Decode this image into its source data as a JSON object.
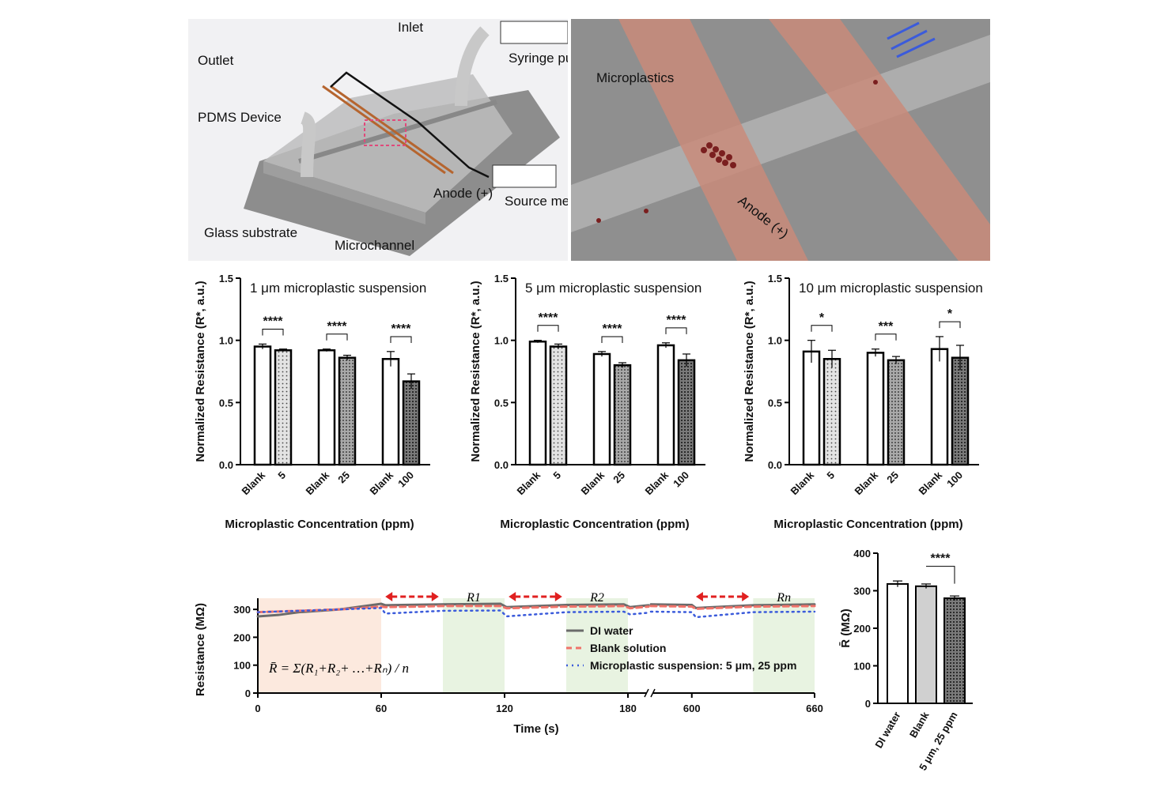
{
  "schematic": {
    "labels": {
      "inlet": "Inlet",
      "syringe": "Syringe pump",
      "outlet": "Outlet",
      "pdms": "PDMS Device",
      "glass": "Glass substrate",
      "microchannel": "Microchannel",
      "anode": "Anode (+)",
      "source": "Source meter"
    }
  },
  "render": {
    "labels": {
      "microplastics": "Microplastics",
      "anode": "Anode (+)"
    }
  },
  "chart_data": [
    {
      "type": "bar",
      "title": "1 μm microplastic suspension",
      "xlabel": "Microplastic Concentration (ppm)",
      "ylabel": "Normalized Resistance (R*, a.u.)",
      "ylim": [
        0,
        1.5
      ],
      "yticks": [
        "0.0",
        "0.5",
        "1.0",
        "1.5"
      ],
      "categories": [
        "Blank",
        "5",
        "Blank",
        "25",
        "Blank",
        "100"
      ],
      "values": [
        0.95,
        0.92,
        0.92,
        0.86,
        0.85,
        0.67
      ],
      "errors": [
        0.02,
        0.01,
        0.01,
        0.02,
        0.06,
        0.06
      ],
      "significance": [
        "****",
        "****",
        "****"
      ]
    },
    {
      "type": "bar",
      "title": "5 μm microplastic suspension",
      "xlabel": "Microplastic Concentration (ppm)",
      "ylabel": "Normalized Resistance (R*, a.u.)",
      "ylim": [
        0,
        1.5
      ],
      "yticks": [
        "0.0",
        "0.5",
        "1.0",
        "1.5"
      ],
      "categories": [
        "Blank",
        "5",
        "Blank",
        "25",
        "Blank",
        "100"
      ],
      "values": [
        0.99,
        0.95,
        0.89,
        0.8,
        0.96,
        0.84
      ],
      "errors": [
        0.01,
        0.02,
        0.02,
        0.02,
        0.02,
        0.05
      ],
      "significance": [
        "****",
        "****",
        "****"
      ]
    },
    {
      "type": "bar",
      "title": "10 μm microplastic suspension",
      "xlabel": "Microplastic Concentration (ppm)",
      "ylabel": "Normalized Resistance (R*, a.u.)",
      "ylim": [
        0,
        1.5
      ],
      "yticks": [
        "0.0",
        "0.5",
        "1.0",
        "1.5"
      ],
      "categories": [
        "Blank",
        "5",
        "Blank",
        "25",
        "Blank",
        "100"
      ],
      "values": [
        0.91,
        0.85,
        0.9,
        0.84,
        0.93,
        0.86
      ],
      "errors": [
        0.09,
        0.07,
        0.03,
        0.03,
        0.1,
        0.1
      ],
      "significance": [
        "*",
        "***",
        "*"
      ]
    },
    {
      "type": "line",
      "xlabel": "Time (s)",
      "ylabel": "Resistance (MΩ)",
      "yticks": [
        "0",
        "100",
        "200",
        "300"
      ],
      "ylim": [
        0,
        340
      ],
      "xticks_left": [
        "0",
        "60",
        "120",
        "180"
      ],
      "xticks_right": [
        "600",
        "660"
      ],
      "region_labels": [
        "R1",
        "R2",
        "Rn"
      ],
      "formula": "R̄ = Σ(R₁+R₂+ …+Rₙ) / n",
      "legend": [
        "DI water",
        "Blank solution",
        "Microplastic suspension: 5 μm, 25 ppm"
      ],
      "series": [
        {
          "name": "DI water",
          "color": "#6b6b6b",
          "x": [
            0,
            10,
            20,
            40,
            60,
            62,
            90,
            118,
            121,
            150,
            178,
            181,
            190,
            580,
            600,
            602,
            630,
            660
          ],
          "y": [
            275,
            280,
            290,
            300,
            320,
            315,
            318,
            320,
            308,
            316,
            318,
            308,
            315,
            318,
            316,
            305,
            315,
            318
          ]
        },
        {
          "name": "Blank solution",
          "color": "#f0736a",
          "x": [
            0,
            20,
            40,
            60,
            62,
            90,
            118,
            121,
            150,
            178,
            181,
            190,
            580,
            600,
            602,
            630,
            660
          ],
          "y": [
            290,
            295,
            300,
            310,
            308,
            312,
            312,
            304,
            310,
            312,
            304,
            310,
            312,
            310,
            302,
            310,
            312
          ]
        },
        {
          "name": "Microplastic suspension: 5 μm, 25 ppm",
          "color": "#3b5bdb",
          "x": [
            0,
            20,
            40,
            60,
            62,
            90,
            118,
            121,
            150,
            178,
            181,
            190,
            580,
            600,
            602,
            630,
            660
          ],
          "y": [
            290,
            295,
            300,
            305,
            285,
            295,
            296,
            275,
            290,
            292,
            282,
            288,
            292,
            290,
            272,
            290,
            292
          ]
        }
      ]
    },
    {
      "type": "bar",
      "ylabel": "R̄ (MΩ)",
      "ylim": [
        0,
        400
      ],
      "yticks": [
        "0",
        "100",
        "200",
        "300",
        "400"
      ],
      "categories": [
        "DI water",
        "Blank",
        "5 μm, 25 ppm"
      ],
      "values": [
        318,
        312,
        280
      ],
      "errors": [
        8,
        6,
        6
      ],
      "significance": [
        "****"
      ]
    }
  ]
}
